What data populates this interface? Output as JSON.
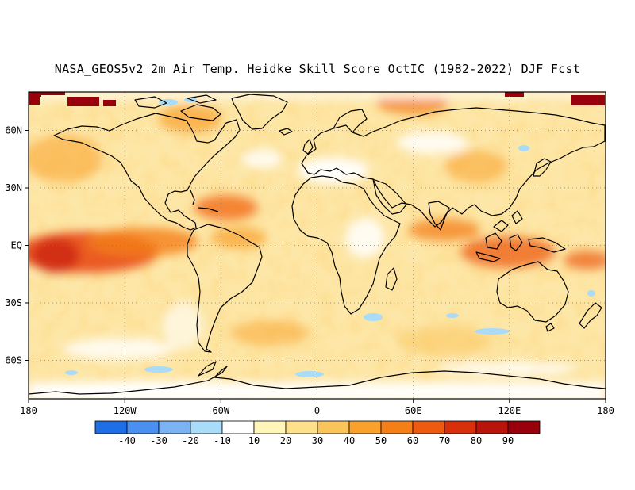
{
  "title": "NASA_GEOS5v2 2m Air Temp. Heidke Skill Score OctIC (1982-2022) DJF Fcst",
  "map": {
    "lat_ticks": [
      "60N",
      "30N",
      "EQ",
      "30S",
      "60S"
    ],
    "lon_ticks": [
      "180",
      "120W",
      "60W",
      "0",
      "60E",
      "120E",
      "180"
    ]
  },
  "colorbar": {
    "colors": [
      "#1e6fe6",
      "#4a90f0",
      "#7bb4f5",
      "#a8dcf8",
      "#ffffff",
      "#fff6b8",
      "#fde089",
      "#fbc45a",
      "#f9a12c",
      "#f47e17",
      "#ec5b0f",
      "#d8300a",
      "#b9140a",
      "#98000c"
    ],
    "labels": [
      "-40",
      "-30",
      "-20",
      "-10",
      "10",
      "20",
      "30",
      "40",
      "50",
      "60",
      "70",
      "80",
      "90"
    ]
  }
}
